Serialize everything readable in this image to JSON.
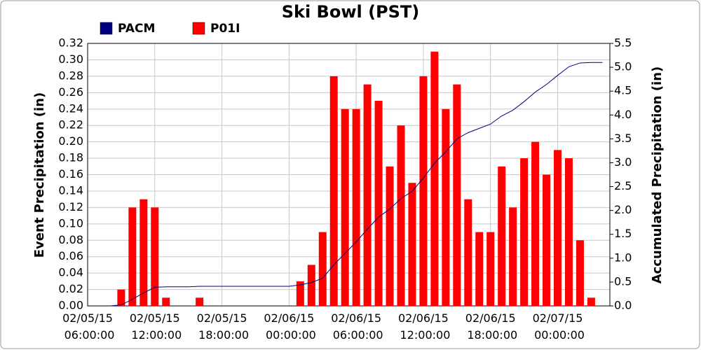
{
  "chart_data": {
    "type": "combo",
    "title": "Ski Bowl (PST)",
    "y_label": "Event Precipitation (in)",
    "y2_label": "Accumulated Precipitation (in)",
    "xlim": [
      "02/05/15 06:00:00",
      "02/07/15 04:40:00"
    ],
    "xticks": [
      "02/05/15 06:00:00",
      "02/05/15 12:00:00",
      "02/05/15 18:00:00",
      "02/06/15 00:00:00",
      "02/06/15 06:00:00",
      "02/06/15 12:00:00",
      "02/06/15 18:00:00",
      "02/07/15 00:00:00"
    ],
    "ylim": [
      0,
      0.32
    ],
    "yticks": [
      {
        "value": 0,
        "label": "0.00"
      },
      0.02,
      0.04,
      0.06,
      0.08,
      {
        "value": 0.1,
        "label": "0.10"
      },
      0.12,
      0.14,
      0.16,
      0.18,
      {
        "value": 0.2,
        "label": "0.20"
      },
      0.22,
      0.24,
      0.26,
      0.28,
      {
        "value": 0.3,
        "label": "0.30"
      },
      0.32
    ],
    "y2lim": [
      0,
      5.5
    ],
    "y2ticks": [
      {
        "value": 0,
        "label": "0.0"
      },
      0.5,
      {
        "value": 1,
        "label": "1.0"
      },
      1.5,
      {
        "value": 2,
        "label": "2.0"
      },
      2.5,
      {
        "value": 3,
        "label": "3.0"
      },
      3.5,
      {
        "value": 4,
        "label": "4.0"
      },
      4.5,
      {
        "value": 5,
        "label": "5.0"
      },
      5.5
    ],
    "grid": true,
    "legend": "top-left",
    "x": [
      "02/05/15 08:00:00",
      "02/05/15 09:00:00",
      "02/05/15 10:00:00",
      "02/05/15 11:00:00",
      "02/05/15 12:00:00",
      "02/05/15 13:00:00",
      "02/05/15 14:00:00",
      "02/05/15 15:00:00",
      "02/05/15 16:00:00",
      "02/05/15 17:00:00",
      "02/05/15 18:00:00",
      "02/05/15 19:00:00",
      "02/05/15 20:00:00",
      "02/05/15 21:00:00",
      "02/05/15 22:00:00",
      "02/05/15 23:00:00",
      "02/06/15 00:00:00",
      "02/06/15 01:00:00",
      "02/06/15 02:00:00",
      "02/06/15 03:00:00",
      "02/06/15 04:00:00",
      "02/06/15 05:00:00",
      "02/06/15 06:00:00",
      "02/06/15 07:00:00",
      "02/06/15 08:00:00",
      "02/06/15 09:00:00",
      "02/06/15 10:00:00",
      "02/06/15 11:00:00",
      "02/06/15 12:00:00",
      "02/06/15 13:00:00",
      "02/06/15 14:00:00",
      "02/06/15 15:00:00",
      "02/06/15 16:00:00",
      "02/06/15 17:00:00",
      "02/06/15 18:00:00",
      "02/06/15 19:00:00",
      "02/06/15 20:00:00",
      "02/06/15 21:00:00",
      "02/06/15 22:00:00",
      "02/06/15 23:00:00",
      "02/07/15 00:00:00",
      "02/07/15 01:00:00",
      "02/07/15 02:00:00",
      "02/07/15 03:00:00",
      "02/07/15 04:00:00"
    ],
    "series": [
      {
        "name": "PACM",
        "color": "#000080",
        "type": "line",
        "axis": "y2",
        "values": [
          0,
          0.02,
          0.14,
          0.27,
          0.39,
          0.4,
          0.4,
          0.4,
          0.41,
          0.41,
          0.41,
          0.41,
          0.41,
          0.41,
          0.41,
          0.41,
          0.41,
          0.44,
          0.49,
          0.58,
          0.86,
          1.1,
          1.34,
          1.61,
          1.86,
          2.03,
          2.25,
          2.4,
          2.68,
          2.99,
          3.23,
          3.5,
          3.63,
          3.72,
          3.81,
          3.98,
          4.1,
          4.28,
          4.48,
          4.64,
          4.83,
          5.01,
          5.09,
          5.1,
          5.1
        ]
      },
      {
        "name": "P01I",
        "color": "#ff0000",
        "type": "bar",
        "values": [
          null,
          0.02,
          0.12,
          0.13,
          0.12,
          0.01,
          null,
          null,
          0.01,
          null,
          null,
          null,
          null,
          null,
          null,
          null,
          null,
          0.03,
          0.05,
          0.09,
          0.28,
          0.24,
          0.24,
          0.27,
          0.25,
          0.17,
          0.22,
          0.15,
          0.28,
          0.31,
          0.24,
          0.27,
          0.13,
          0.09,
          0.09,
          0.17,
          0.12,
          0.18,
          0.2,
          0.16,
          0.19,
          0.18,
          0.08,
          0.01,
          null
        ]
      }
    ]
  }
}
